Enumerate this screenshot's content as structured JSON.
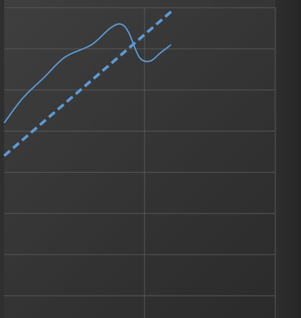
{
  "colors": {
    "series_line": "#5b9bd5",
    "trend_line": "#5b9bd5",
    "grid": "#5a5a5a",
    "background_start": "#3f3f3f",
    "background_end": "#2a2a2a"
  },
  "chart_data": {
    "type": "line",
    "title": "",
    "xlabel": "",
    "ylabel": "",
    "grid": true,
    "legend": "none",
    "xlim": [
      0,
      10
    ],
    "ylim": [
      0,
      8
    ],
    "x_gridlines": [
      5.3
    ],
    "y_gridlines": [
      0,
      1,
      2,
      3,
      4,
      5,
      6,
      7
    ],
    "series": [
      {
        "style": "solid",
        "x": [
          0,
          0.7,
          1.5,
          2.3,
          3.3,
          4.0,
          4.4,
          4.7,
          5.1,
          5.5,
          5.9,
          6.3
        ],
        "y": [
          4.2,
          4.8,
          5.3,
          5.8,
          6.1,
          6.5,
          6.6,
          6.4,
          5.8,
          5.7,
          5.9,
          6.1
        ]
      },
      {
        "style": "dashed",
        "x": [
          0,
          6.3
        ],
        "y": [
          3.4,
          6.9
        ]
      }
    ]
  }
}
